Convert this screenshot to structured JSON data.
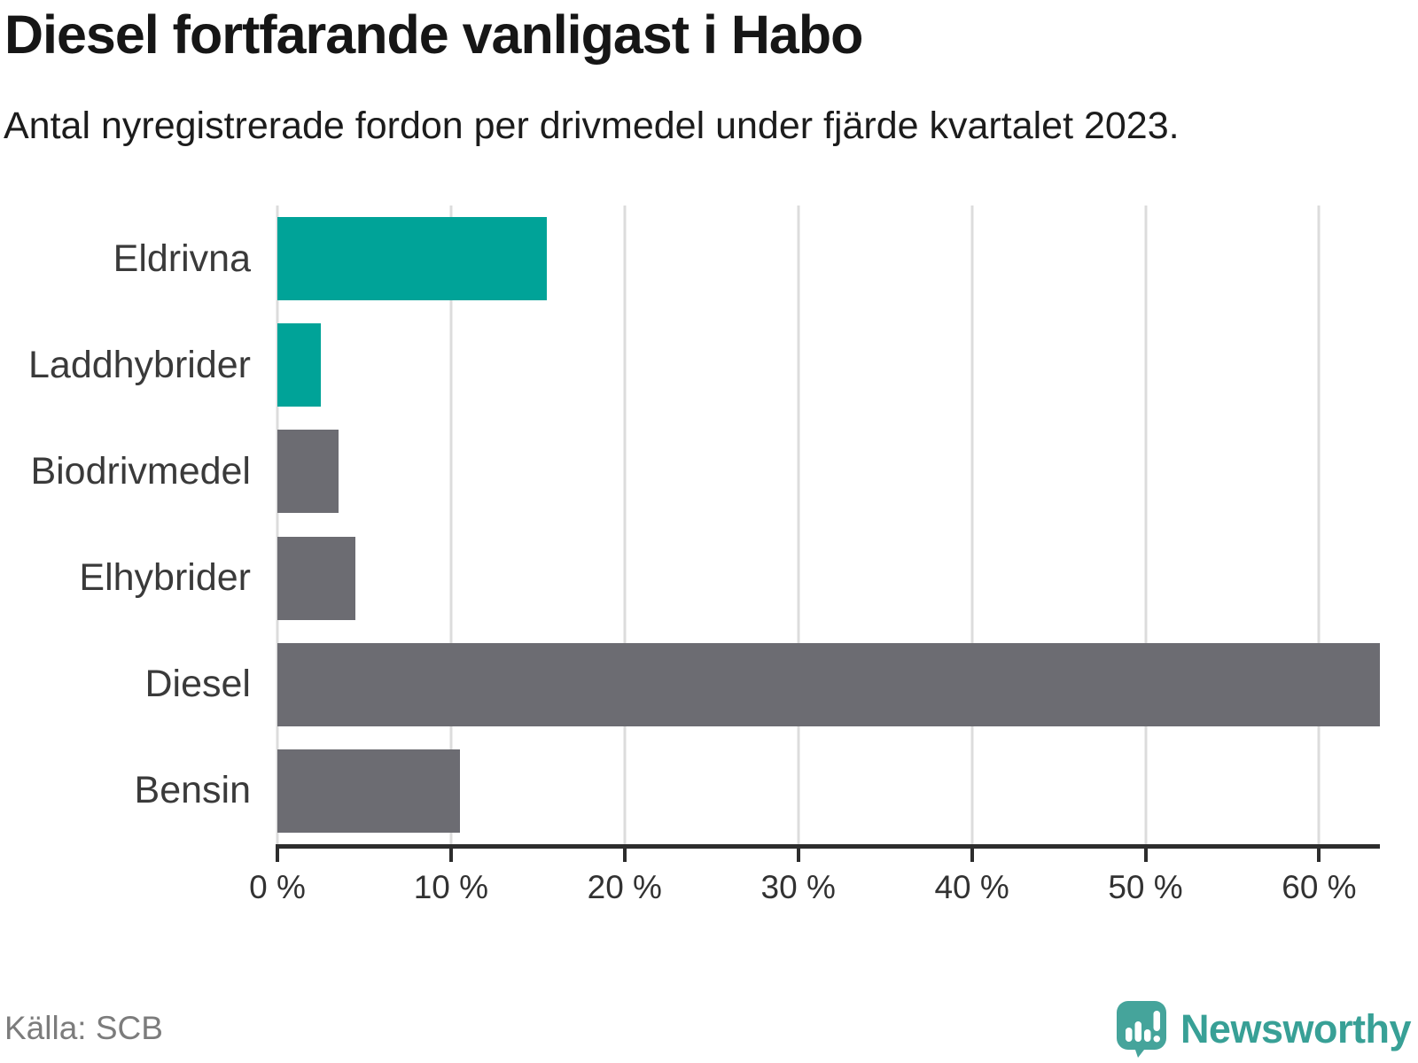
{
  "header": {
    "title": "Diesel fortfarande vanligast i Habo",
    "subtitle": "Antal nyregistrerade fordon per drivmedel under fjärde kvartalet 2023."
  },
  "chart_data": {
    "type": "bar",
    "orientation": "horizontal",
    "categories": [
      "Eldrivna",
      "Laddhybrider",
      "Biodrivmedel",
      "Elhybrider",
      "Diesel",
      "Bensin"
    ],
    "values": [
      15.5,
      2.5,
      3.5,
      4.5,
      63.5,
      10.5
    ],
    "unit": "%",
    "bar_colors": [
      "#00a398",
      "#00a398",
      "#6c6c72",
      "#6c6c72",
      "#6c6c72",
      "#6c6c72"
    ],
    "highlight_color": "#00a398",
    "base_color": "#6c6c72",
    "x_ticks": [
      0,
      10,
      20,
      30,
      40,
      50,
      60
    ],
    "x_tick_labels": [
      "0 %",
      "10 %",
      "20 %",
      "30 %",
      "40 %",
      "50 %",
      "60 %"
    ],
    "xlim": [
      0,
      63.5
    ],
    "grid": "vertical-only",
    "gridline_color": "#dcdcdc",
    "axis_color": "#2d2d2d",
    "legend": "none"
  },
  "footer": {
    "source": "Källa: SCB",
    "brand": "Newsworthy",
    "brand_color": "#38a096"
  }
}
